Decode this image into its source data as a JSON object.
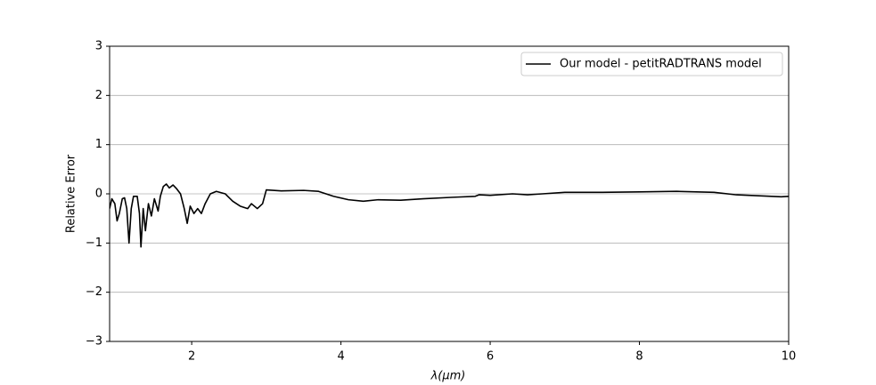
{
  "chart_data": {
    "type": "line",
    "xlabel": "λ(μm)",
    "ylabel": "Relative Error",
    "xlim": [
      0.9,
      10
    ],
    "ylim": [
      -3,
      3
    ],
    "xticks": [
      2,
      4,
      6,
      8,
      10
    ],
    "yticks": [
      {
        "value": -3,
        "label": "−3"
      },
      {
        "value": -2,
        "label": "−2"
      },
      {
        "value": -1,
        "label": "−1"
      },
      0,
      1,
      2,
      3
    ],
    "grid": "y",
    "legend": "upper right",
    "series": [
      {
        "name": "Our model - petitRADTRANS model",
        "color": "#000000",
        "x": [
          0.9,
          0.93,
          0.97,
          1.0,
          1.03,
          1.07,
          1.1,
          1.13,
          1.16,
          1.19,
          1.22,
          1.27,
          1.3,
          1.32,
          1.35,
          1.38,
          1.42,
          1.46,
          1.5,
          1.55,
          1.58,
          1.62,
          1.66,
          1.7,
          1.75,
          1.8,
          1.85,
          1.9,
          1.94,
          1.98,
          2.03,
          2.08,
          2.13,
          2.18,
          2.25,
          2.33,
          2.45,
          2.55,
          2.65,
          2.75,
          2.8,
          2.88,
          2.95,
          3.0,
          3.2,
          3.5,
          3.7,
          3.9,
          4.1,
          4.3,
          4.5,
          4.8,
          5.1,
          5.5,
          5.8,
          5.85,
          6.0,
          6.3,
          6.5,
          6.7,
          7.0,
          7.5,
          8.0,
          8.5,
          9.0,
          9.3,
          9.6,
          9.9,
          10.0
        ],
        "values": [
          -0.3,
          -0.1,
          -0.2,
          -0.55,
          -0.4,
          -0.1,
          -0.08,
          -0.3,
          -1.0,
          -0.3,
          -0.05,
          -0.05,
          -0.4,
          -1.08,
          -0.3,
          -0.75,
          -0.2,
          -0.45,
          -0.1,
          -0.35,
          -0.05,
          0.15,
          0.2,
          0.12,
          0.18,
          0.1,
          0.0,
          -0.3,
          -0.6,
          -0.25,
          -0.4,
          -0.3,
          -0.4,
          -0.2,
          0.0,
          0.05,
          0.0,
          -0.15,
          -0.25,
          -0.3,
          -0.2,
          -0.3,
          -0.2,
          0.08,
          0.06,
          0.07,
          0.05,
          -0.05,
          -0.12,
          -0.15,
          -0.12,
          -0.13,
          -0.1,
          -0.07,
          -0.05,
          -0.02,
          -0.03,
          0.0,
          -0.02,
          0.0,
          0.03,
          0.03,
          0.04,
          0.05,
          0.03,
          -0.02,
          -0.04,
          -0.06,
          -0.05
        ]
      }
    ]
  }
}
